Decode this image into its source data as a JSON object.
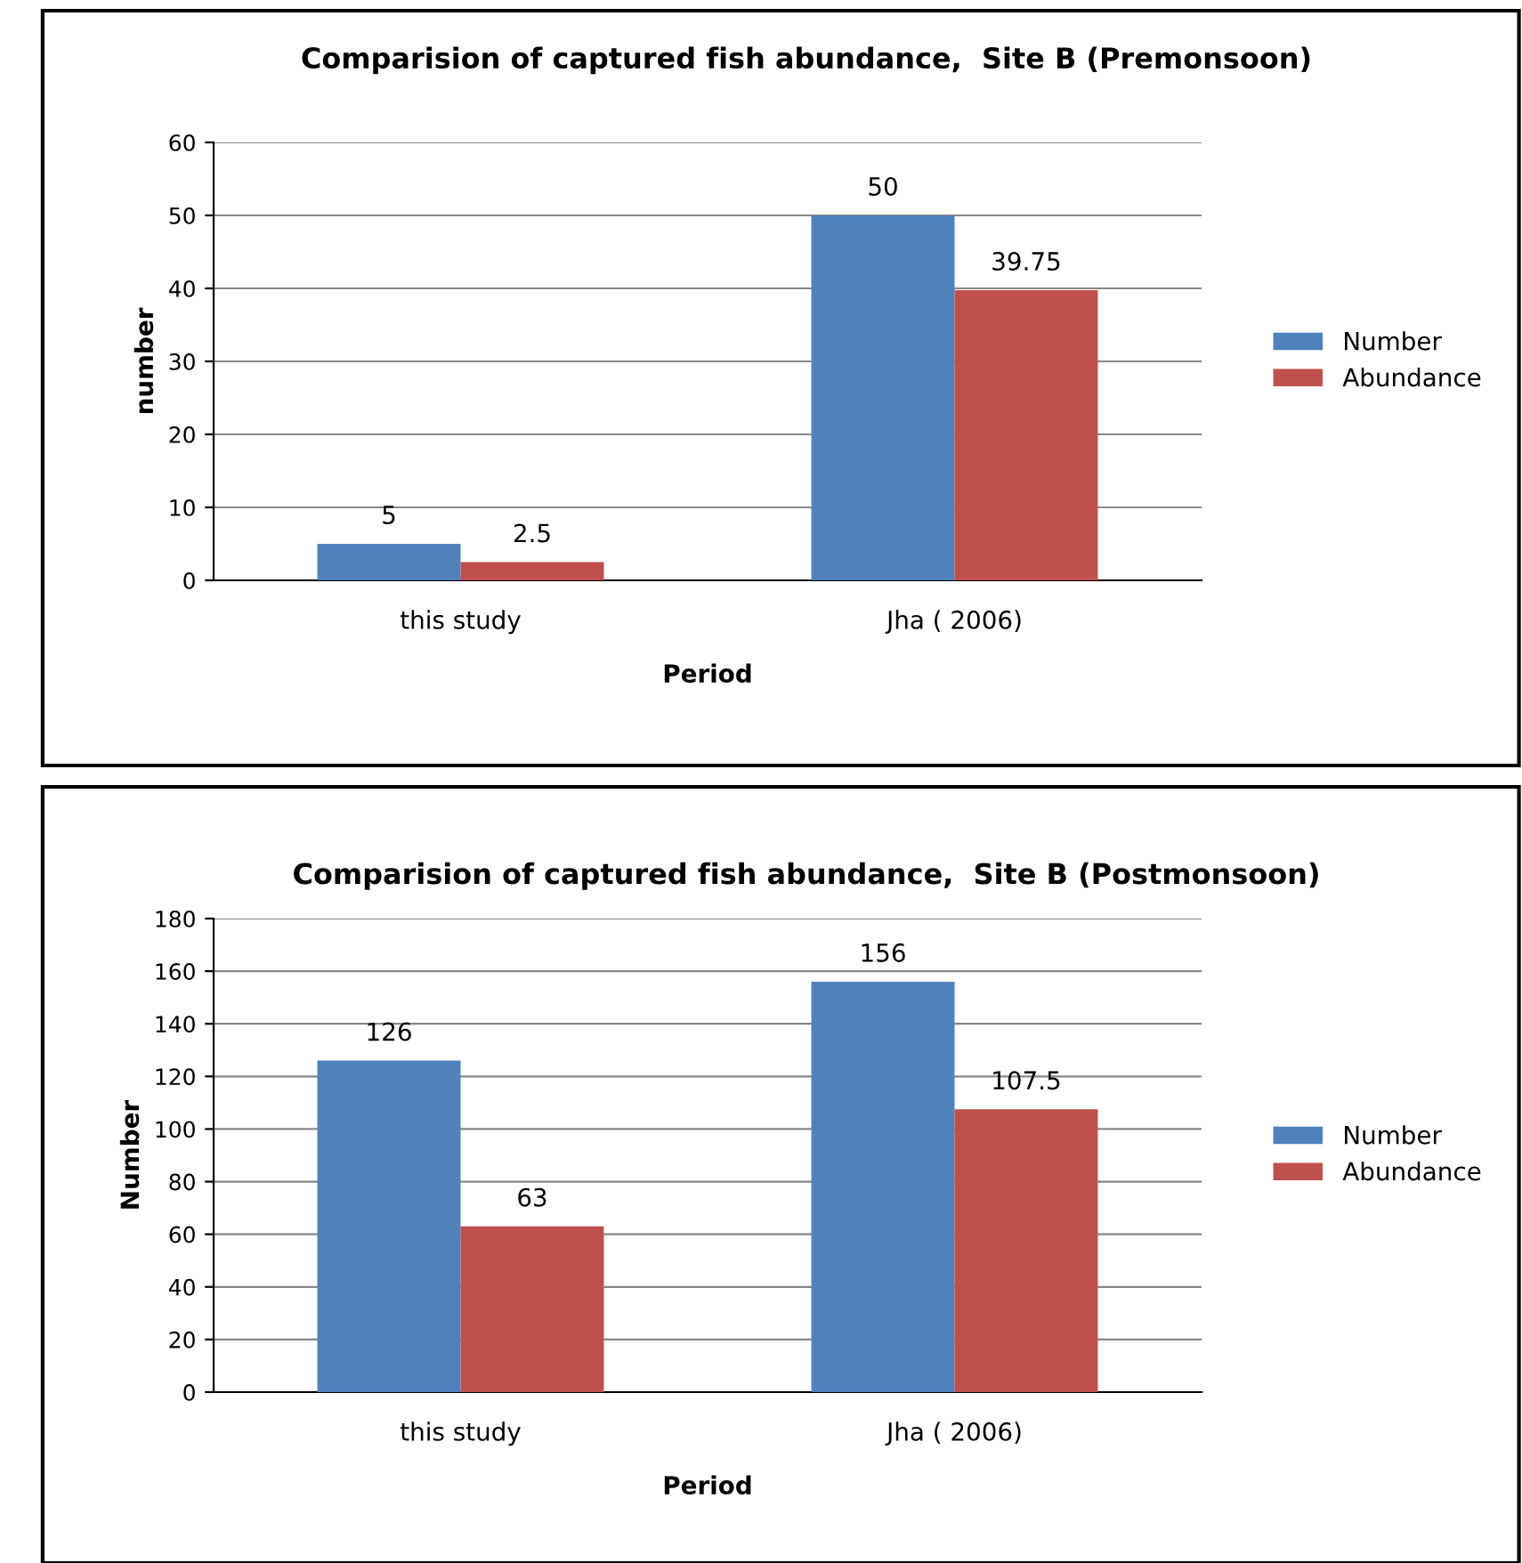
{
  "chart_data": [
    {
      "type": "bar",
      "title": "Comparision of captured fish abundance,  Site B (Premonsoon)",
      "xlabel": "Period",
      "ylabel": "number",
      "categories": [
        "this study",
        "Jha ( 2006)"
      ],
      "series": [
        {
          "name": "Number",
          "color": "#4f81bd",
          "values": [
            5,
            50
          ]
        },
        {
          "name": "Abundance",
          "color": "#c0504d",
          "values": [
            2.5,
            39.75
          ]
        }
      ],
      "ylim": [
        0,
        60
      ],
      "yticks": [
        0,
        10,
        20,
        30,
        40,
        50,
        60
      ],
      "grid": "y",
      "legend": "right",
      "data_labels": true
    },
    {
      "type": "bar",
      "title": "Comparision of captured fish abundance,  Site B (Postmonsoon)",
      "xlabel": "Period",
      "ylabel": "Number",
      "categories": [
        "this study",
        "Jha ( 2006)"
      ],
      "series": [
        {
          "name": "Number",
          "color": "#4f81bd",
          "values": [
            126,
            156
          ]
        },
        {
          "name": "Abundance",
          "color": "#c0504d",
          "values": [
            63,
            107.5
          ]
        }
      ],
      "ylim": [
        0,
        180
      ],
      "yticks": [
        0,
        20,
        40,
        60,
        80,
        100,
        120,
        140,
        160,
        180
      ],
      "grid": "y",
      "legend": "right",
      "data_labels": true
    }
  ]
}
